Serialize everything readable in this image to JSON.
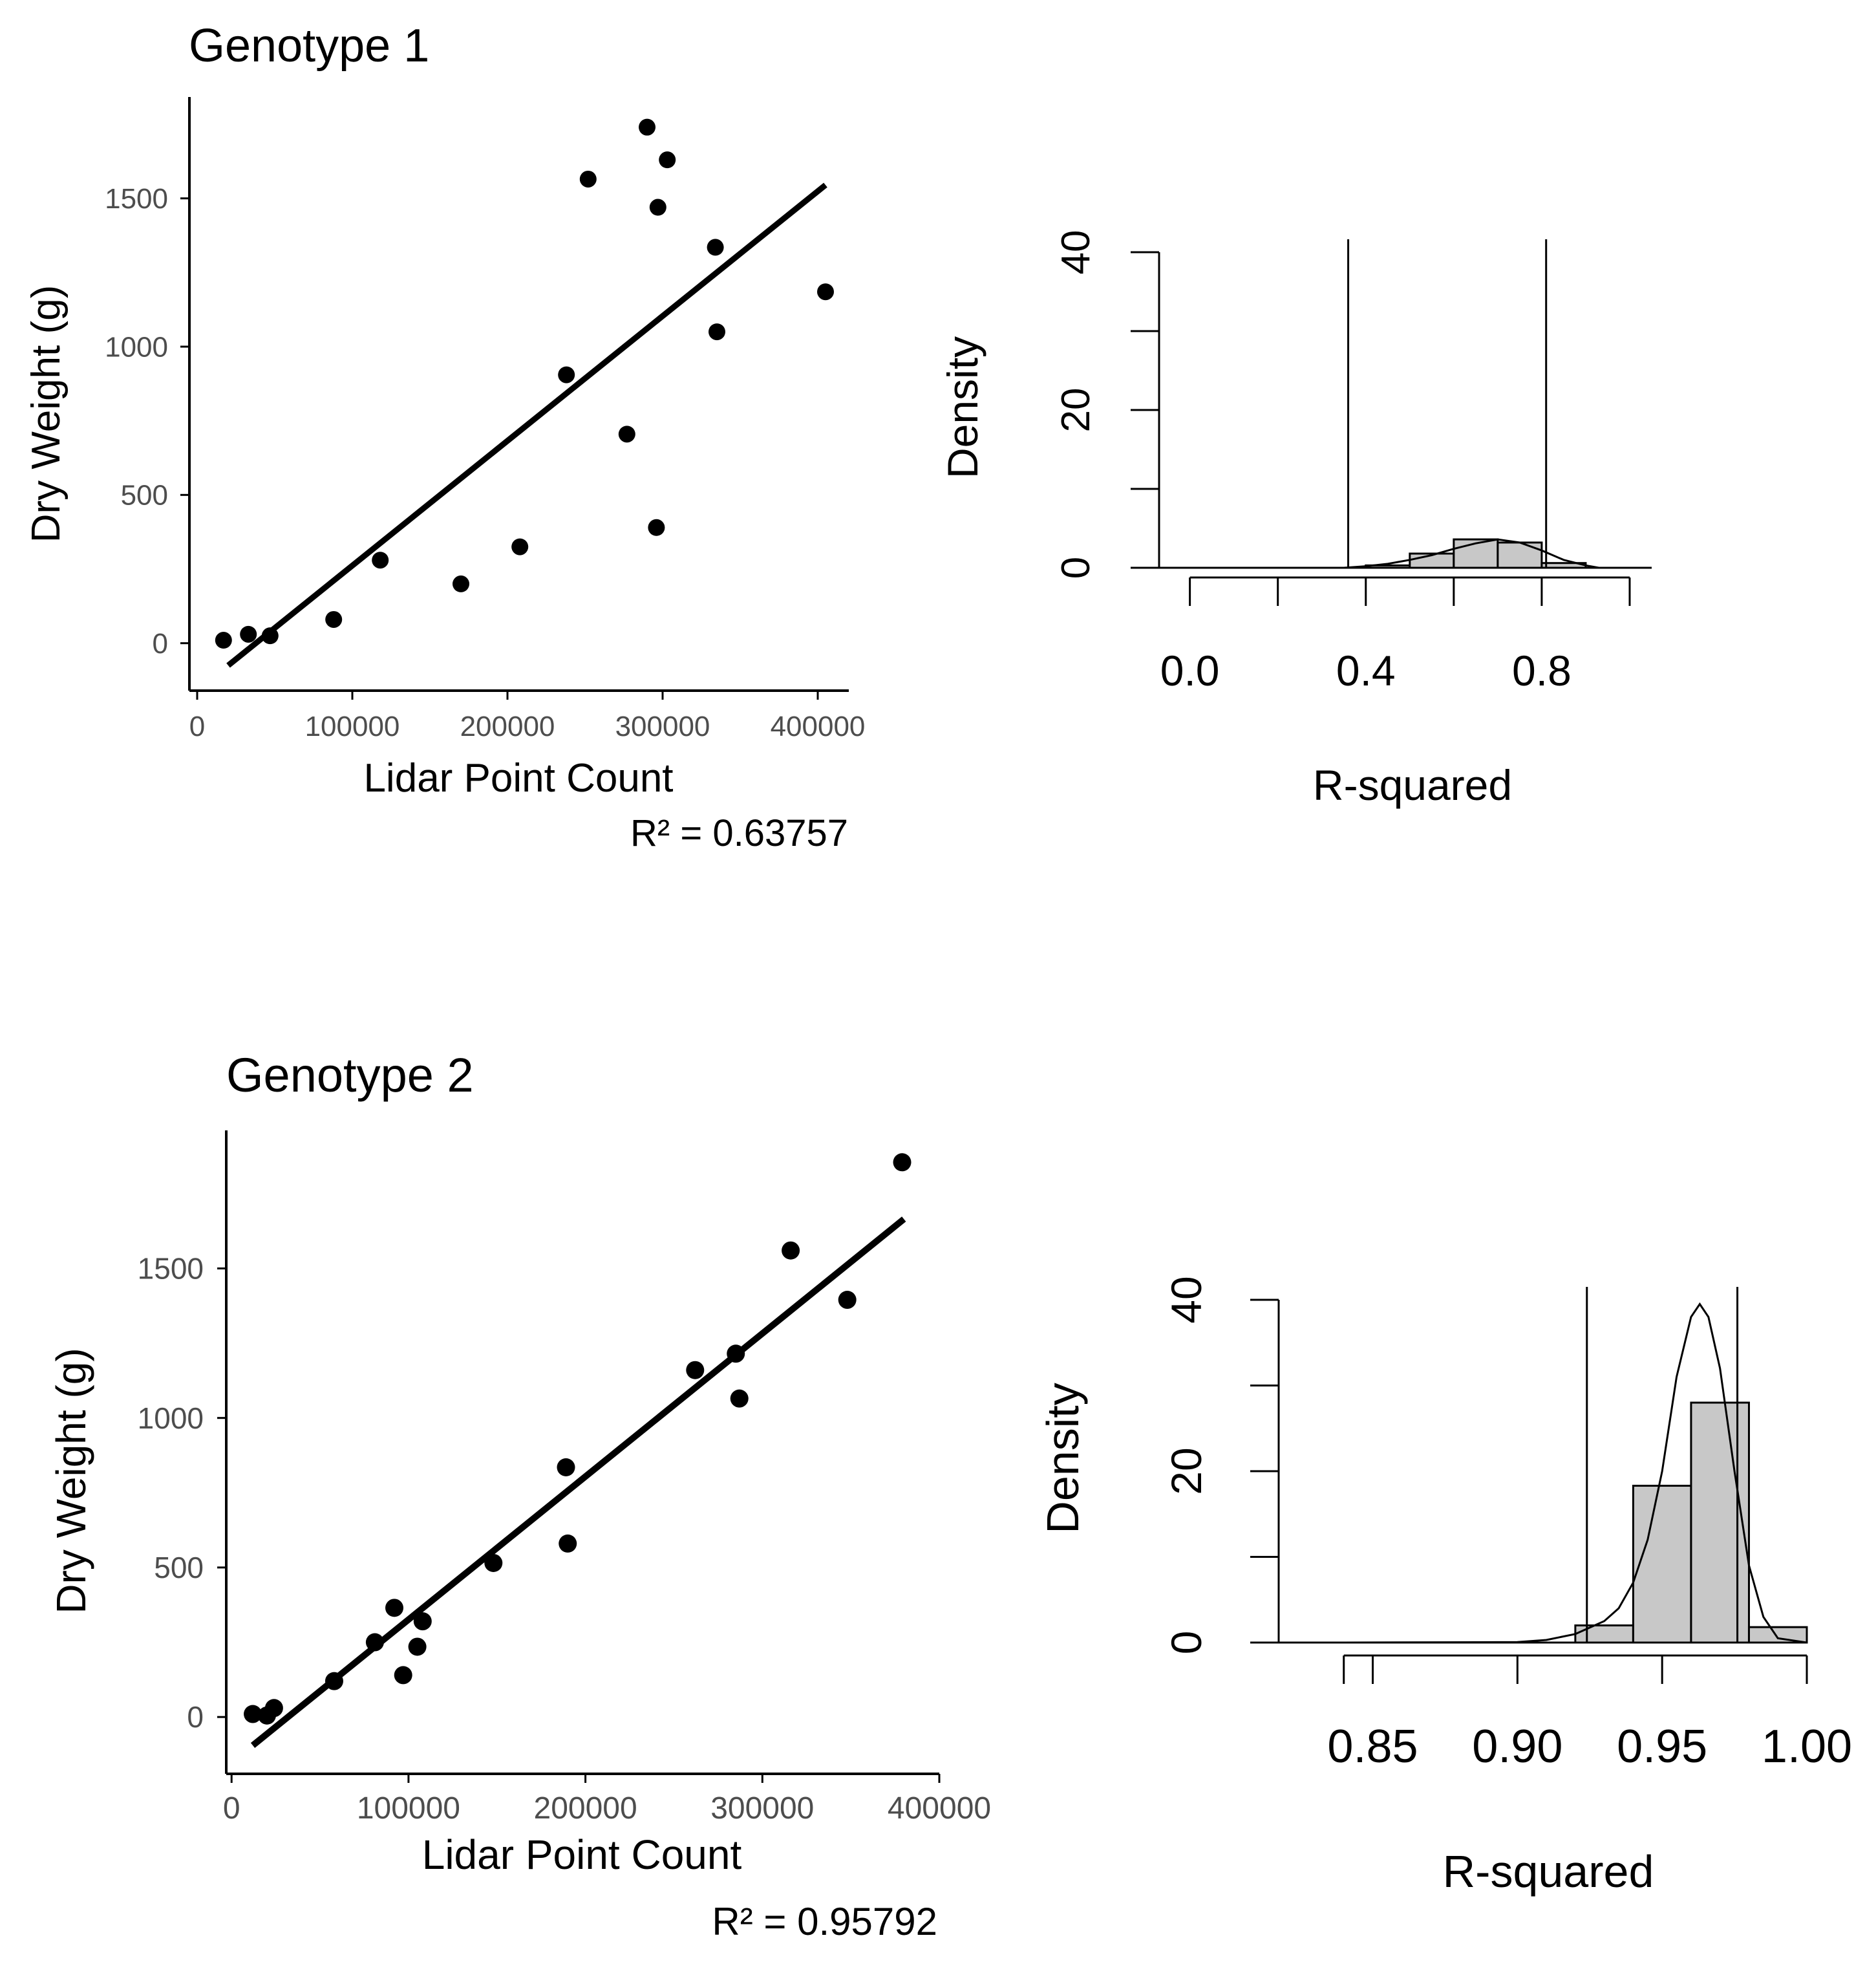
{
  "colors": {
    "point": "#000000",
    "line": "#000000",
    "axis": "#000000",
    "tick_label_scatter": "#4d4d4d",
    "hist_fill": "#c8c8c8",
    "hist_stroke": "#000000",
    "background": "#ffffff"
  },
  "chart_data": [
    {
      "id": "g1-scatter",
      "type": "scatter",
      "title": "Genotype 1",
      "xlabel": "Lidar Point Count",
      "ylabel": "Dry Weight (g)",
      "xlim": [
        -5000,
        420000
      ],
      "ylim": [
        -160,
        1820
      ],
      "xticks": [
        0,
        100000,
        200000,
        300000,
        400000
      ],
      "xtick_labels": [
        "0",
        "100000",
        "200000",
        "300000",
        "400000"
      ],
      "yticks": [
        0,
        500,
        1000,
        1500
      ],
      "ytick_labels": [
        "0",
        "500",
        "1000",
        "1500"
      ],
      "points": [
        [
          17000,
          10
        ],
        [
          33000,
          30
        ],
        [
          47000,
          25
        ],
        [
          88000,
          80
        ],
        [
          118000,
          280
        ],
        [
          170000,
          200
        ],
        [
          208000,
          325
        ],
        [
          238000,
          905
        ],
        [
          252000,
          1565
        ],
        [
          277000,
          705
        ],
        [
          290000,
          1740
        ],
        [
          296000,
          390
        ],
        [
          297000,
          1470
        ],
        [
          303000,
          1630
        ],
        [
          334000,
          1335
        ],
        [
          335000,
          1050
        ],
        [
          405000,
          1185
        ]
      ],
      "fit": {
        "x": [
          20000,
          405000
        ],
        "y": [
          -75,
          1545
        ]
      },
      "annotation": "R² = 0.63757",
      "grid": false
    },
    {
      "id": "g1-hist",
      "type": "histogram",
      "xlabel": "R-squared",
      "ylabel": "Density",
      "xlim": [
        -0.07,
        1.05
      ],
      "ylim": [
        0,
        40
      ],
      "xticks": [
        0.0,
        0.2,
        0.4,
        0.6,
        0.8,
        1.0
      ],
      "xtick_labels": [
        "0.0",
        "",
        "0.4",
        "",
        "0.8",
        ""
      ],
      "yticks": [
        0,
        10,
        20,
        30,
        40
      ],
      "ytick_labels": [
        "0",
        "",
        "20",
        "",
        "40"
      ],
      "bins": [
        {
          "from": 0.4,
          "to": 0.5,
          "density": 0.3
        },
        {
          "from": 0.5,
          "to": 0.6,
          "density": 1.8
        },
        {
          "from": 0.6,
          "to": 0.7,
          "density": 3.6
        },
        {
          "from": 0.7,
          "to": 0.8,
          "density": 3.2
        },
        {
          "from": 0.8,
          "to": 0.9,
          "density": 0.6
        }
      ],
      "density_curve": [
        [
          0.25,
          0.0
        ],
        [
          0.35,
          0.0
        ],
        [
          0.4,
          0.2
        ],
        [
          0.45,
          0.5
        ],
        [
          0.5,
          1.0
        ],
        [
          0.55,
          1.6
        ],
        [
          0.6,
          2.4
        ],
        [
          0.65,
          3.1
        ],
        [
          0.7,
          3.6
        ],
        [
          0.75,
          3.2
        ],
        [
          0.8,
          2.2
        ],
        [
          0.85,
          1.0
        ],
        [
          0.9,
          0.3
        ],
        [
          0.93,
          0.0
        ]
      ],
      "vlines": [
        0.36,
        0.81
      ]
    },
    {
      "id": "g2-scatter",
      "type": "scatter",
      "title": "Genotype 2",
      "xlabel": "Lidar Point Count",
      "ylabel": "Dry Weight (g)",
      "xlim": [
        -3000,
        400000
      ],
      "ylim": [
        -190,
        1940
      ],
      "xticks": [
        0,
        100000,
        200000,
        300000,
        400000
      ],
      "xtick_labels": [
        "0",
        "100000",
        "200000",
        "300000",
        "400000"
      ],
      "yticks": [
        0,
        500,
        1000,
        1500
      ],
      "ytick_labels": [
        "0",
        "500",
        "1000",
        "1500"
      ],
      "points": [
        [
          12000,
          10
        ],
        [
          20000,
          5
        ],
        [
          24000,
          30
        ],
        [
          58000,
          120
        ],
        [
          81000,
          250
        ],
        [
          92000,
          365
        ],
        [
          97000,
          140
        ],
        [
          105000,
          235
        ],
        [
          108000,
          320
        ],
        [
          148000,
          515
        ],
        [
          189000,
          835
        ],
        [
          190000,
          580
        ],
        [
          262000,
          1160
        ],
        [
          285000,
          1215
        ],
        [
          287000,
          1065
        ],
        [
          316000,
          1560
        ],
        [
          348000,
          1395
        ],
        [
          379000,
          1855
        ]
      ],
      "fit": {
        "x": [
          12000,
          380000
        ],
        "y": [
          -95,
          1665
        ]
      },
      "annotation": "R² = 0.95792",
      "grid": false
    },
    {
      "id": "g2-hist",
      "type": "histogram",
      "xlabel": "R-squared",
      "ylabel": "Density",
      "xlim": [
        0.8175,
        1.0
      ],
      "ylim": [
        0,
        40
      ],
      "xticks": [
        0.84,
        0.85,
        0.9,
        0.95,
        1.0
      ],
      "xtick_labels": [
        "",
        "0.85",
        "0.90",
        "0.95",
        "1.00"
      ],
      "yticks": [
        0,
        10,
        20,
        30,
        40
      ],
      "ytick_labels": [
        "0",
        "",
        "20",
        "",
        "40"
      ],
      "bins": [
        {
          "from": 0.92,
          "to": 0.94,
          "density": 2.0
        },
        {
          "from": 0.94,
          "to": 0.96,
          "density": 18.3
        },
        {
          "from": 0.96,
          "to": 0.98,
          "density": 28.0
        },
        {
          "from": 0.98,
          "to": 1.0,
          "density": 1.8
        }
      ],
      "density_curve": [
        [
          0.84,
          0.0
        ],
        [
          0.9,
          0.05
        ],
        [
          0.91,
          0.3
        ],
        [
          0.92,
          1.0
        ],
        [
          0.93,
          2.5
        ],
        [
          0.935,
          4.0
        ],
        [
          0.94,
          7.0
        ],
        [
          0.945,
          12.0
        ],
        [
          0.95,
          20.0
        ],
        [
          0.955,
          31.0
        ],
        [
          0.96,
          38.0
        ],
        [
          0.963,
          39.5
        ],
        [
          0.966,
          38.0
        ],
        [
          0.97,
          32.0
        ],
        [
          0.975,
          20.0
        ],
        [
          0.98,
          9.0
        ],
        [
          0.985,
          3.0
        ],
        [
          0.99,
          0.5
        ],
        [
          1.0,
          0.0
        ]
      ],
      "vlines": [
        0.924,
        0.976
      ]
    }
  ]
}
